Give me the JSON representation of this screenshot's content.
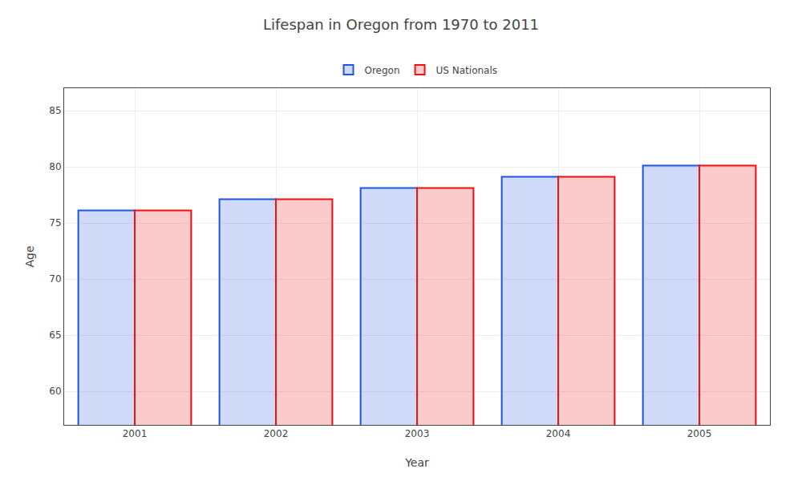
{
  "chart_data": {
    "type": "bar",
    "title": "Lifespan in Oregon from 1970 to 2011",
    "x_label": "Year",
    "y_label": "Age",
    "categories": [
      "2001",
      "2002",
      "2003",
      "2004",
      "2005"
    ],
    "series": [
      {
        "name": "Oregon",
        "color": "#2255dd",
        "values": [
          76.1,
          77.1,
          78.1,
          79.1,
          80.1
        ]
      },
      {
        "name": "US Nationals",
        "color": "#ee1111",
        "values": [
          76.1,
          77.1,
          78.1,
          79.1,
          80.1
        ]
      }
    ],
    "ylim": [
      57,
      87
    ],
    "yticks": [
      60,
      65,
      70,
      75,
      80,
      85
    ],
    "grid": true,
    "legend": "top"
  }
}
